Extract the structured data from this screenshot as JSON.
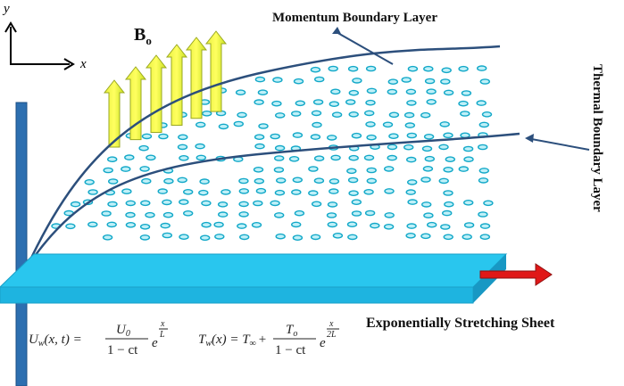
{
  "axes": {
    "y": "y",
    "x": "x"
  },
  "field": {
    "symbol": "B",
    "subscript": "o"
  },
  "labels": {
    "momentum": "Momentum Boundary Layer",
    "thermal": "Thermal Boundary Layer",
    "sheet": "Exponentially Stretching Sheet"
  },
  "equations": [
    {
      "lhs": "U",
      "lhs_sub": "w",
      "args": "(x, t) =",
      "num": "U",
      "num_sub": "0",
      "den": "1 − ct",
      "base": "e",
      "exp_num": "x",
      "exp_den": "L"
    },
    {
      "lhs": "T",
      "lhs_sub": "w",
      "args": "(x) = T",
      "args_sub": "∞",
      "plus": "+",
      "num": "T",
      "num_sub": "o",
      "den": "1 − ct",
      "base": "e",
      "exp_num": "x",
      "exp_den": "2L"
    }
  ]
}
